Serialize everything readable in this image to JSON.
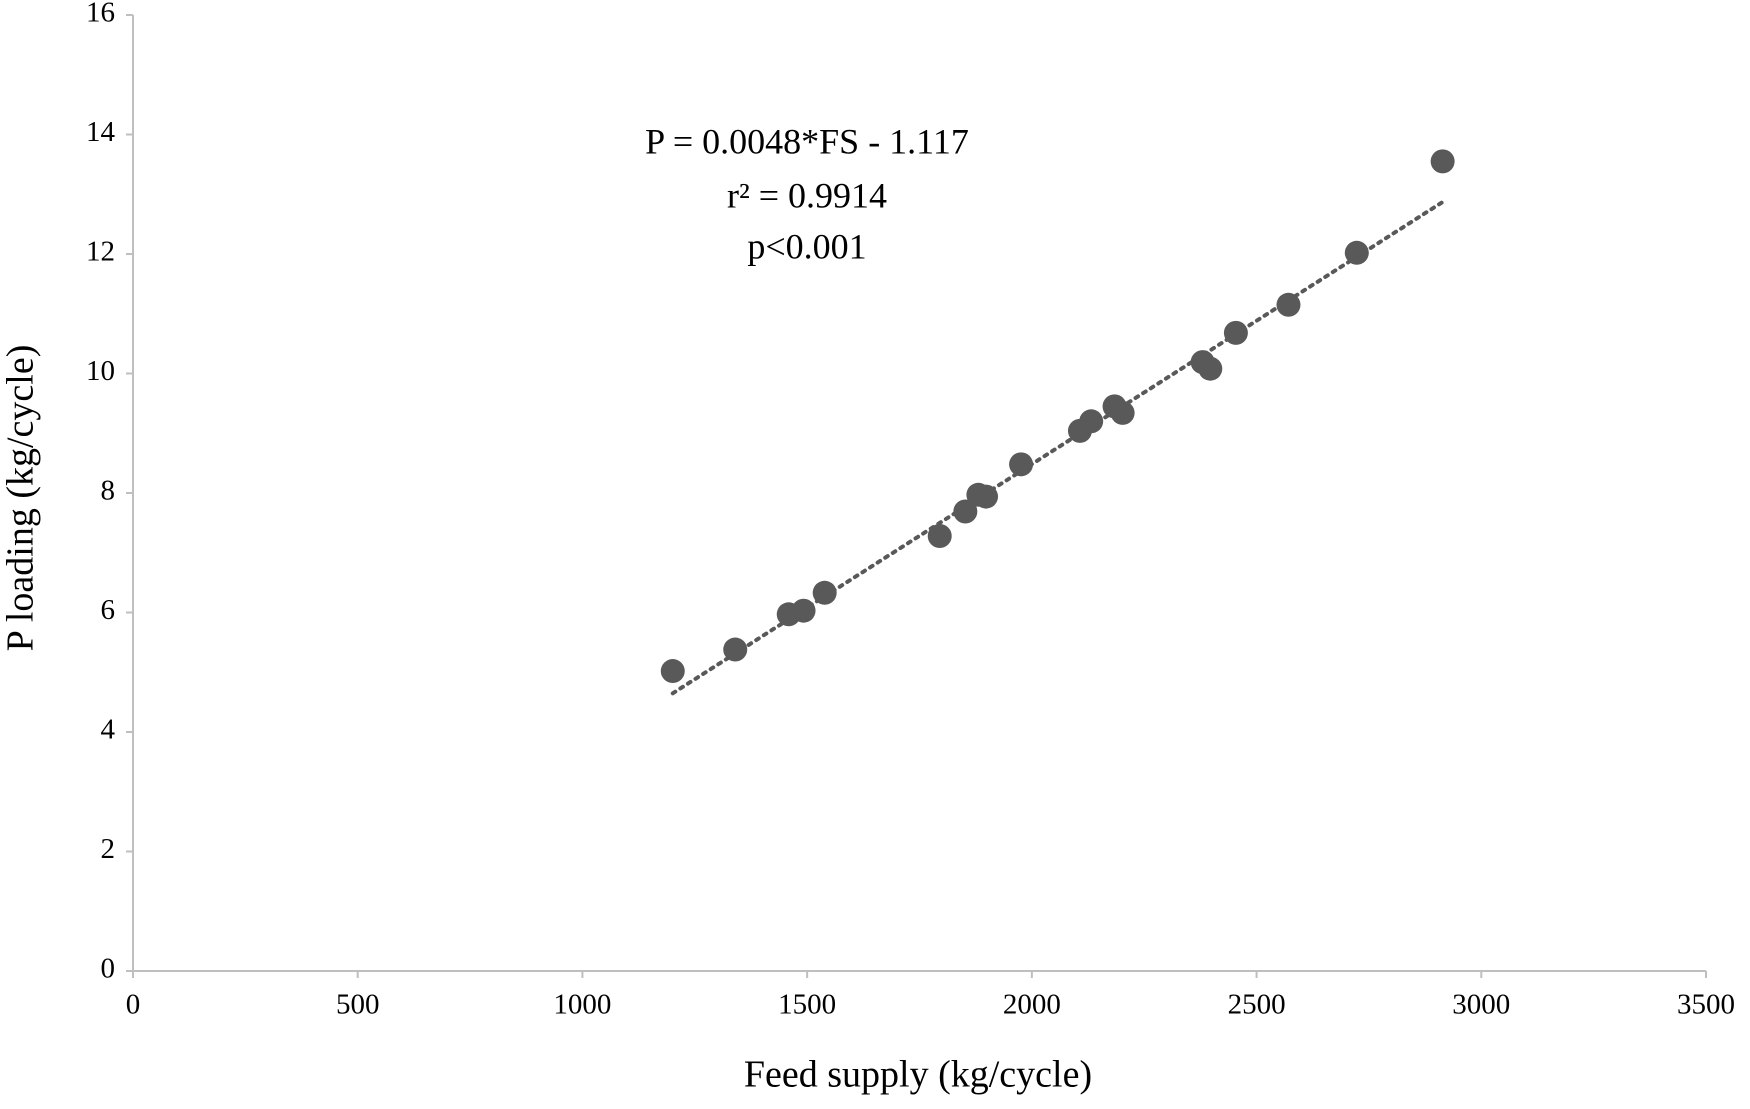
{
  "chart_data": {
    "type": "scatter",
    "x_label": "Feed supply (kg/cycle)",
    "y_label": "P loading (kg/cycle)",
    "annotations": [
      "P = 0.0048*FS - 1.117",
      "r² = 0.9914",
      "p<0.001"
    ],
    "trendline": {
      "slope": 0.0048,
      "intercept": -1.117,
      "color": "#595959"
    },
    "series": [
      {
        "color": "#595959",
        "x": [
          1201,
          1340,
          1459,
          1492,
          1539,
          1795,
          1852,
          1881,
          1898,
          1976,
          2107,
          2132,
          2184,
          2202,
          2380,
          2397,
          2454,
          2571,
          2723,
          2914
        ],
        "values": [
          5.02,
          5.38,
          5.97,
          6.03,
          6.33,
          7.28,
          7.69,
          7.97,
          7.94,
          8.48,
          9.04,
          9.2,
          9.45,
          9.34,
          10.19,
          10.08,
          10.68,
          11.15,
          12.02,
          13.55
        ]
      }
    ],
    "xlim": [
      0,
      3500
    ],
    "xticks": [
      0,
      500,
      1000,
      1500,
      2000,
      2500,
      3000,
      3500
    ],
    "ylim": [
      0,
      16
    ],
    "yticks": [
      0,
      2,
      4,
      6,
      8,
      10,
      12,
      14,
      16
    ],
    "grid": false
  }
}
